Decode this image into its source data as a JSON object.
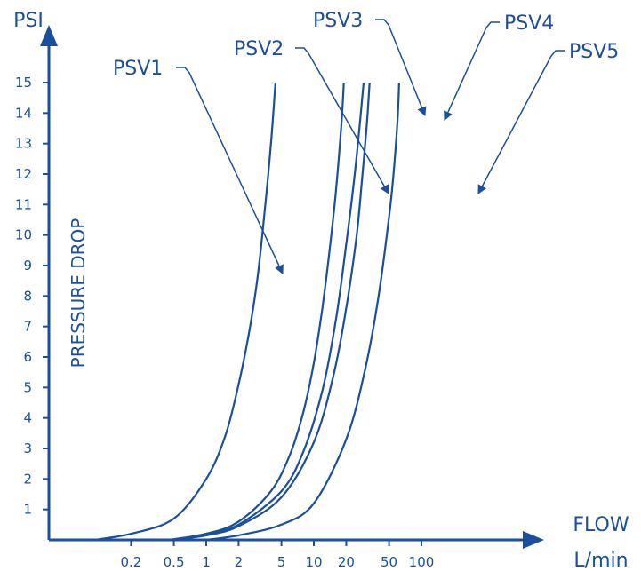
{
  "chart_data": {
    "type": "line",
    "xscale": "log",
    "xlabel": "FLOW",
    "x_unit": "L/min",
    "y_unit": "PSI",
    "ylabel": "PRESSURE DROP",
    "xticks": [
      0.2,
      0.5,
      1,
      2,
      5,
      10,
      20,
      50,
      100
    ],
    "yticks": [
      1,
      2,
      3,
      4,
      5,
      6,
      7,
      8,
      9,
      10,
      11,
      12,
      13,
      14,
      15
    ],
    "ylim": [
      0,
      15
    ],
    "grid": false,
    "color": "#1a4f9c",
    "series": [
      {
        "name": "PSV1",
        "x": [
          0.09,
          0.2,
          0.5,
          1,
          1.5,
          2,
          2.5,
          3,
          3.5,
          4,
          4.4
        ],
        "y": [
          0,
          0.2,
          0.7,
          2,
          3.4,
          5.1,
          6.8,
          8.6,
          10.8,
          13,
          15
        ]
      },
      {
        "name": "PSV2",
        "x": [
          0.45,
          1,
          2,
          4,
          6,
          8,
          10,
          12,
          14,
          16,
          18,
          19
        ],
        "y": [
          0,
          0.2,
          0.6,
          1.6,
          2.8,
          4.2,
          5.8,
          7.6,
          9.5,
          11.4,
          13.6,
          15
        ]
      },
      {
        "name": "PSV3",
        "x": [
          0.5,
          1,
          2,
          5,
          8,
          12,
          16,
          20,
          24,
          27,
          29
        ],
        "y": [
          0,
          0.2,
          0.5,
          1.6,
          2.9,
          4.9,
          7.2,
          9.7,
          12,
          13.8,
          15
        ]
      },
      {
        "name": "PSV4",
        "x": [
          0.5,
          1,
          2,
          5,
          10,
          15,
          20,
          25,
          28,
          31,
          33
        ],
        "y": [
          0,
          0.15,
          0.45,
          1.4,
          3.2,
          5.3,
          7.6,
          10,
          11.8,
          13.6,
          15
        ]
      },
      {
        "name": "PSV5",
        "x": [
          1,
          2,
          5,
          10,
          20,
          30,
          40,
          50,
          55,
          60,
          62
        ],
        "y": [
          0,
          0.15,
          0.5,
          1.2,
          3.3,
          5.6,
          8,
          10.6,
          12,
          13.8,
          15
        ]
      }
    ]
  }
}
